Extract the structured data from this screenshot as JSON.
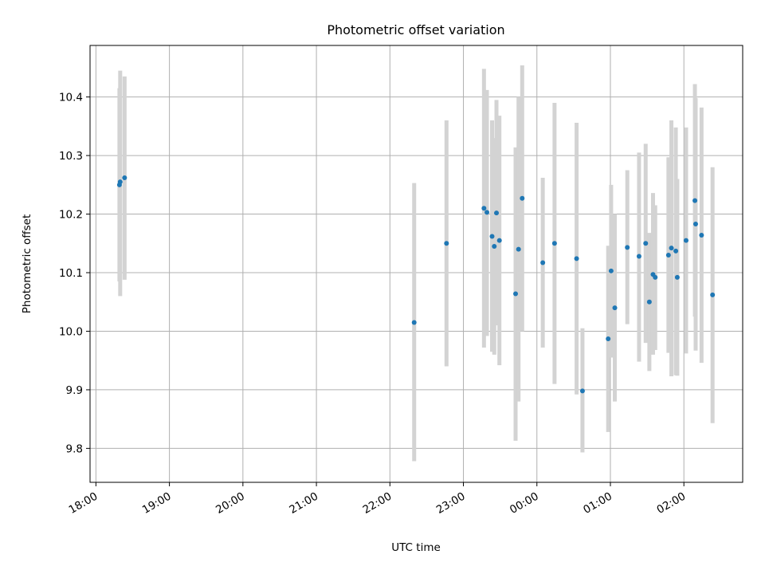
{
  "chart_data": {
    "type": "scatter",
    "title": "Photometric offset variation",
    "xlabel": "UTC time",
    "ylabel": "Photometric offset",
    "x_tick_labels": [
      "18:00",
      "19:00",
      "20:00",
      "21:00",
      "22:00",
      "23:00",
      "00:00",
      "01:00",
      "02:00"
    ],
    "y_ticks": [
      9.8,
      9.9,
      10.0,
      10.1,
      10.2,
      10.3,
      10.4
    ],
    "x_range_hours": [
      17.92,
      26.8
    ],
    "ylim": [
      9.742,
      10.488
    ],
    "grid": true,
    "colors": {
      "point": "#1f77b4",
      "errorbar": "#d3d3d3",
      "grid": "#b0b0b0"
    },
    "points": [
      {
        "t": 18.32,
        "y": 10.25,
        "ylow": 10.085,
        "yhigh": 10.415
      },
      {
        "t": 18.33,
        "y": 10.255,
        "ylow": 10.06,
        "yhigh": 10.445
      },
      {
        "t": 18.39,
        "y": 10.262,
        "ylow": 10.088,
        "yhigh": 10.435
      },
      {
        "t": 22.33,
        "y": 10.015,
        "ylow": 9.778,
        "yhigh": 10.253
      },
      {
        "t": 22.77,
        "y": 10.15,
        "ylow": 9.94,
        "yhigh": 10.36
      },
      {
        "t": 23.28,
        "y": 10.21,
        "ylow": 9.972,
        "yhigh": 10.448
      },
      {
        "t": 23.32,
        "y": 10.203,
        "ylow": 9.992,
        "yhigh": 10.412
      },
      {
        "t": 23.39,
        "y": 10.162,
        "ylow": 9.965,
        "yhigh": 10.36
      },
      {
        "t": 23.42,
        "y": 10.145,
        "ylow": 9.96,
        "yhigh": 10.33
      },
      {
        "t": 23.45,
        "y": 10.202,
        "ylow": 10.01,
        "yhigh": 10.395
      },
      {
        "t": 23.49,
        "y": 10.155,
        "ylow": 9.942,
        "yhigh": 10.368
      },
      {
        "t": 23.71,
        "y": 10.064,
        "ylow": 9.813,
        "yhigh": 10.314
      },
      {
        "t": 23.75,
        "y": 10.14,
        "ylow": 9.88,
        "yhigh": 10.4
      },
      {
        "t": 23.8,
        "y": 10.227,
        "ylow": 10.0,
        "yhigh": 10.454
      },
      {
        "t": 24.08,
        "y": 10.117,
        "ylow": 9.972,
        "yhigh": 10.262
      },
      {
        "t": 24.24,
        "y": 10.15,
        "ylow": 9.91,
        "yhigh": 10.39
      },
      {
        "t": 24.54,
        "y": 10.124,
        "ylow": 9.892,
        "yhigh": 10.356
      },
      {
        "t": 24.62,
        "y": 9.898,
        "ylow": 9.793,
        "yhigh": 10.005
      },
      {
        "t": 24.97,
        "y": 9.987,
        "ylow": 9.828,
        "yhigh": 10.146
      },
      {
        "t": 25.01,
        "y": 10.103,
        "ylow": 9.955,
        "yhigh": 10.25
      },
      {
        "t": 25.06,
        "y": 10.04,
        "ylow": 9.88,
        "yhigh": 10.2
      },
      {
        "t": 25.23,
        "y": 10.143,
        "ylow": 10.012,
        "yhigh": 10.275
      },
      {
        "t": 25.39,
        "y": 10.128,
        "ylow": 9.948,
        "yhigh": 10.305
      },
      {
        "t": 25.48,
        "y": 10.15,
        "ylow": 9.98,
        "yhigh": 10.32
      },
      {
        "t": 25.53,
        "y": 10.05,
        "ylow": 9.932,
        "yhigh": 10.168
      },
      {
        "t": 25.58,
        "y": 10.097,
        "ylow": 9.96,
        "yhigh": 10.236
      },
      {
        "t": 25.61,
        "y": 10.092,
        "ylow": 9.968,
        "yhigh": 10.215
      },
      {
        "t": 25.79,
        "y": 10.13,
        "ylow": 9.963,
        "yhigh": 10.297
      },
      {
        "t": 25.83,
        "y": 10.142,
        "ylow": 9.923,
        "yhigh": 10.36
      },
      {
        "t": 25.89,
        "y": 10.137,
        "ylow": 9.925,
        "yhigh": 10.348
      },
      {
        "t": 25.91,
        "y": 10.092,
        "ylow": 9.924,
        "yhigh": 10.26
      },
      {
        "t": 26.03,
        "y": 10.155,
        "ylow": 9.962,
        "yhigh": 10.348
      },
      {
        "t": 26.15,
        "y": 10.223,
        "ylow": 10.025,
        "yhigh": 10.422
      },
      {
        "t": 26.16,
        "y": 10.183,
        "ylow": 9.967,
        "yhigh": 10.398
      },
      {
        "t": 26.24,
        "y": 10.164,
        "ylow": 9.946,
        "yhigh": 10.382
      },
      {
        "t": 26.39,
        "y": 10.062,
        "ylow": 9.843,
        "yhigh": 10.28
      }
    ]
  }
}
